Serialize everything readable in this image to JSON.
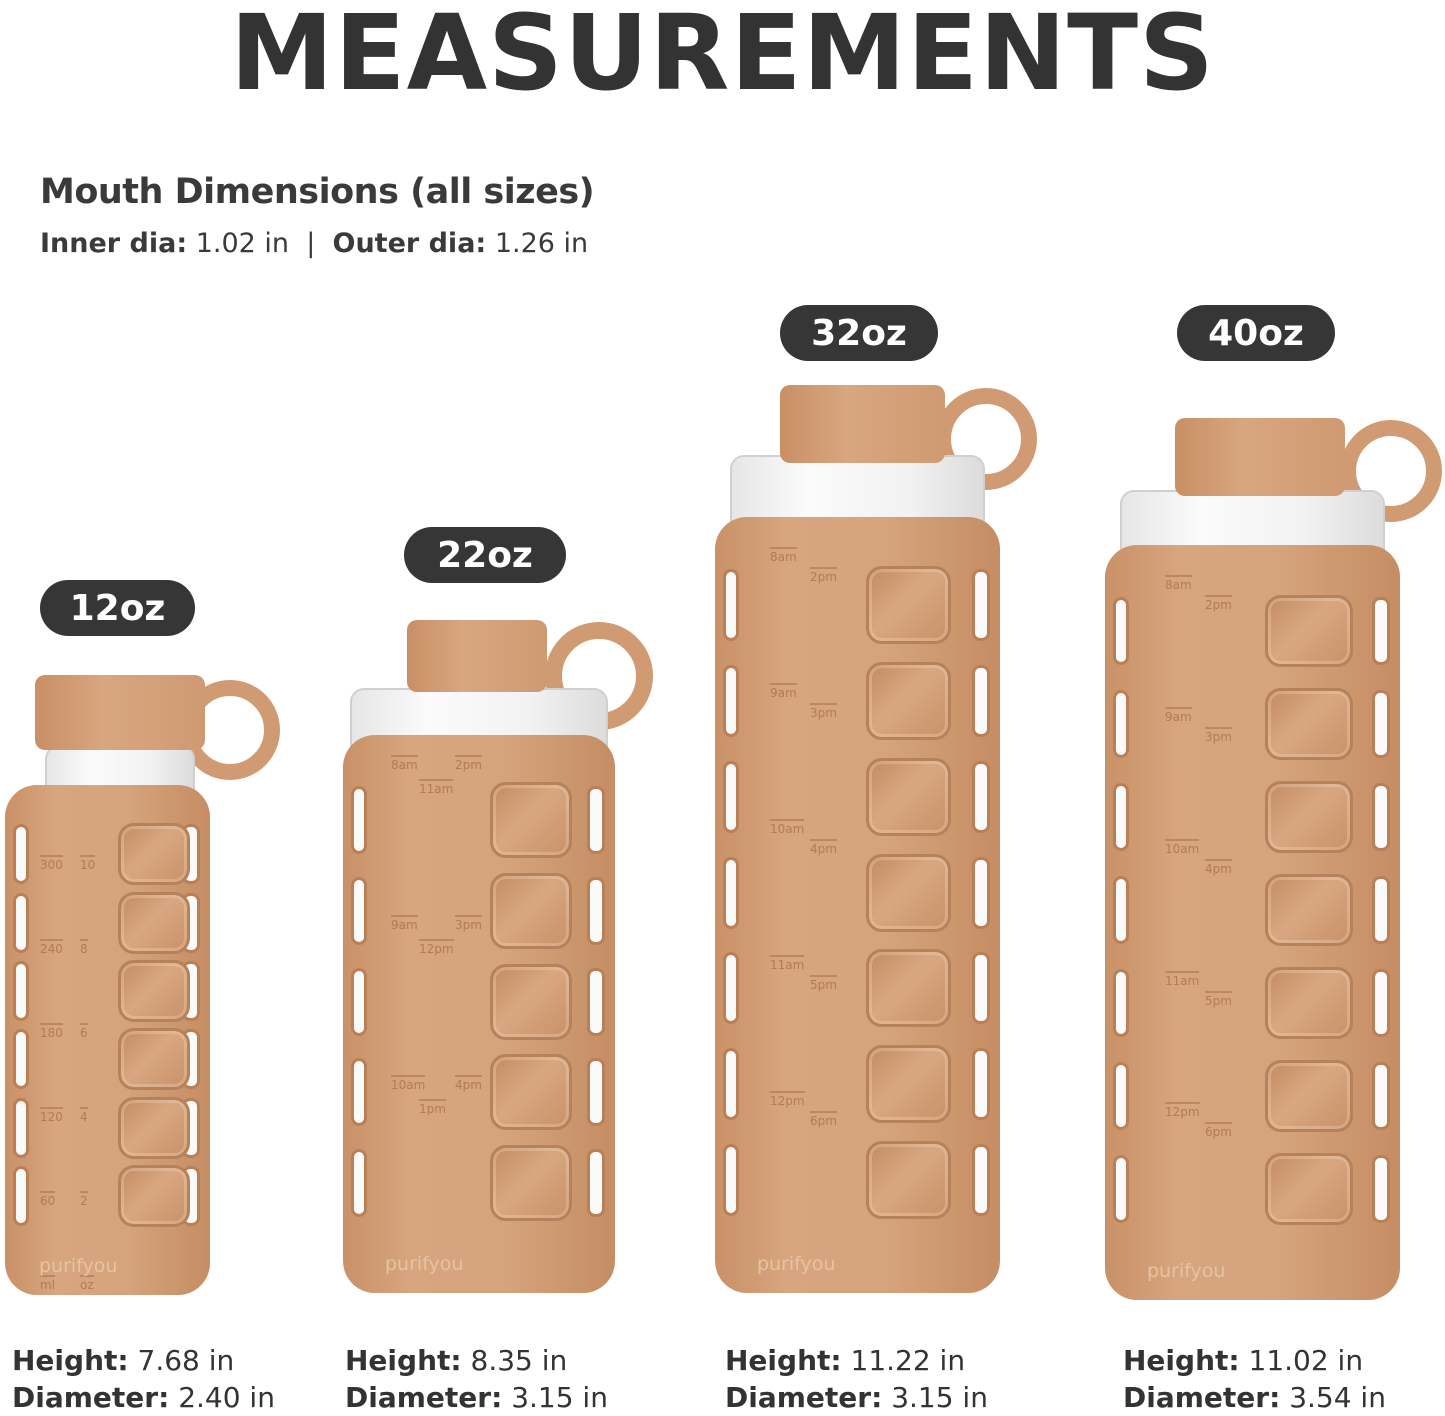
{
  "title": "MEASUREMENTS",
  "mouth": {
    "heading": "Mouth Dimensions (all sizes)",
    "inner_label": "Inner dia:",
    "inner_value": "1.02 in",
    "separator": "|",
    "outer_label": "Outer dia:",
    "outer_value": "1.26 in"
  },
  "colors": {
    "silicone": "#d4a27a",
    "badge": "#363636",
    "text": "#333333"
  },
  "brand": "purifyou",
  "bottles": [
    {
      "size": "12oz",
      "height_label": "Height:",
      "height": "7.68 in",
      "diameter_label": "Diameter:",
      "diameter": "2.40 in",
      "markings": [
        [
          "300",
          "10"
        ],
        [
          "240",
          "8"
        ],
        [
          "180",
          "6"
        ],
        [
          "120",
          "4"
        ],
        [
          "60",
          "2"
        ],
        [
          "ml",
          "oz"
        ]
      ]
    },
    {
      "size": "22oz",
      "height_label": "Height:",
      "height": "8.35 in",
      "diameter_label": "Diameter:",
      "diameter": "3.15 in",
      "markings": [
        [
          "8am",
          "2pm",
          "11am"
        ],
        [
          "9am",
          "3pm",
          "12pm"
        ],
        [
          "10am",
          "4pm",
          "1pm"
        ]
      ]
    },
    {
      "size": "32oz",
      "height_label": "Height:",
      "height": "11.22 in",
      "diameter_label": "Diameter:",
      "diameter": "3.15 in",
      "markings": [
        [
          "8am",
          "2pm"
        ],
        [
          "9am",
          "3pm"
        ],
        [
          "10am",
          "4pm"
        ],
        [
          "11am",
          "5pm"
        ],
        [
          "12pm",
          "6pm"
        ]
      ]
    },
    {
      "size": "40oz",
      "height_label": "Height:",
      "height": "11.02 in",
      "diameter_label": "Diameter:",
      "diameter": "3.54 in",
      "markings": [
        [
          "8am",
          "2pm"
        ],
        [
          "9am",
          "3pm"
        ],
        [
          "10am",
          "4pm"
        ],
        [
          "11am",
          "5pm"
        ],
        [
          "12pm",
          "6pm"
        ]
      ]
    }
  ]
}
